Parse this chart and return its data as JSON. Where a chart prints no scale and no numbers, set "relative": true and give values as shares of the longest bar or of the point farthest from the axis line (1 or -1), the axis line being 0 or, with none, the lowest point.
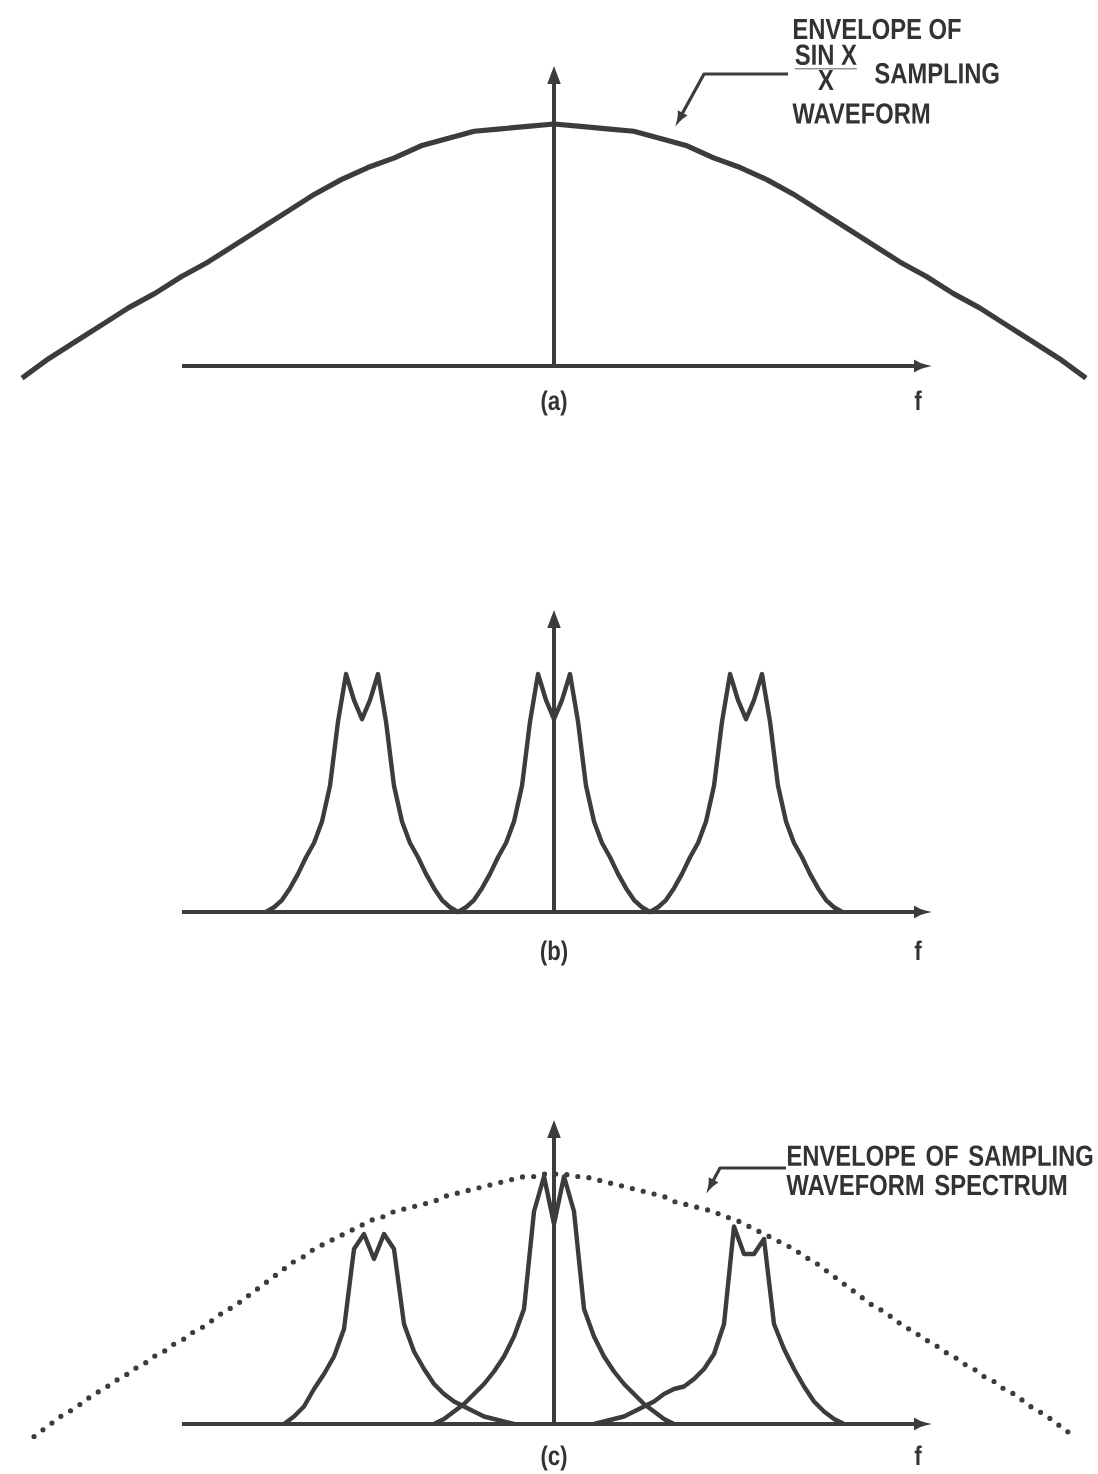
{
  "chart_data": [
    {
      "type": "line",
      "title": "(a)",
      "xlabel": "f",
      "relative": true,
      "categories": [
        null,
        null,
        null,
        null,
        null,
        null,
        null,
        null,
        null,
        null,
        null,
        null,
        null,
        null,
        null,
        null,
        null,
        null,
        null,
        null,
        null,
        null,
        null,
        null,
        null,
        null,
        null,
        null,
        null,
        null,
        null,
        null,
        null,
        null,
        null,
        null,
        null,
        null,
        null,
        null,
        null
      ],
      "series": [
        {
          "color": "#3c3c3c",
          "values": [
            -0.05,
            0.03,
            0.1,
            0.17,
            0.24,
            0.3,
            0.37,
            0.43,
            0.5,
            0.57,
            0.64,
            0.71,
            0.77,
            0.82,
            0.86,
            0.91,
            0.94,
            0.97,
            0.98,
            0.99,
            1,
            0.99,
            0.98,
            0.97,
            0.94,
            0.91,
            0.86,
            0.82,
            0.77,
            0.71,
            0.64,
            0.57,
            0.5,
            0.43,
            0.37,
            0.3,
            0.24,
            0.17,
            0.1,
            0.03,
            -0.05
          ]
        }
      ],
      "annotations": [
        "ENVELOPE OF",
        "\\frac{\\mbox{SIN X}}{\\mbox{X}}",
        "SAMPLING",
        "WAVEFORM"
      ]
    },
    {
      "type": "line",
      "title": "(b)",
      "xlabel": "f",
      "relative": true,
      "categories": [
        null,
        null,
        null,
        null,
        null,
        null,
        null,
        null,
        null,
        null,
        null,
        null,
        null,
        null,
        null,
        null,
        null,
        null,
        null,
        null,
        null,
        null,
        null,
        null,
        null,
        null,
        null,
        null,
        null,
        null,
        null,
        null,
        null,
        null,
        null,
        null,
        null,
        null,
        null,
        null,
        null,
        null,
        null,
        null,
        null,
        null,
        null,
        null,
        null,
        null,
        null,
        null,
        null,
        null,
        null,
        null,
        null,
        null,
        null,
        null,
        null,
        null,
        null,
        null,
        null,
        null,
        null,
        null,
        null,
        null,
        null,
        null,
        null,
        null,
        null,
        null,
        null,
        null,
        null,
        null,
        null,
        null,
        null,
        null,
        null,
        null,
        null,
        null,
        null,
        null,
        null,
        null,
        null
      ],
      "series": [
        {
          "color": "#3c3c3c",
          "values": [
            null,
            null,
            null,
            null,
            null,
            null,
            null,
            null,
            null,
            null,
            0,
            0.02,
            0.05,
            0.1,
            0.16,
            0.23,
            0.29,
            0.38,
            0.53,
            0.8,
            1,
            0.89,
            0.81,
            0.89,
            1,
            0.8,
            0.53,
            0.38,
            0.29,
            0.23,
            0.16,
            0.1,
            0.05,
            0.02,
            0,
            0.02,
            0.05,
            0.1,
            0.16,
            0.23,
            0.29,
            0.38,
            0.53,
            0.8,
            1,
            0.89,
            0.81,
            0.89,
            1,
            0.8,
            0.53,
            0.38,
            0.29,
            0.23,
            0.16,
            0.1,
            0.05,
            0.02,
            0,
            0.02,
            0.05,
            0.1,
            0.16,
            0.23,
            0.29,
            0.38,
            0.53,
            0.8,
            1,
            0.89,
            0.81,
            0.89,
            1,
            0.8,
            0.53,
            0.38,
            0.29,
            0.23,
            0.16,
            0.1,
            0.05,
            0.02,
            0,
            null,
            null,
            null,
            null,
            null,
            null,
            null,
            null,
            null,
            null
          ]
        }
      ]
    },
    {
      "type": "line",
      "title": "(c)",
      "xlabel": "f",
      "relative": true,
      "categories": [
        null,
        null,
        null,
        null,
        null,
        null,
        null,
        null,
        null,
        null,
        null,
        null,
        null,
        null,
        null,
        null,
        null,
        null,
        null,
        null,
        null,
        null,
        null,
        null,
        null,
        null,
        null,
        null,
        null,
        null,
        null,
        null,
        null,
        null,
        null,
        null,
        null,
        null,
        null,
        null,
        null,
        null,
        null,
        null,
        null,
        null,
        null,
        null,
        null,
        null,
        null,
        null,
        null,
        null,
        null,
        null,
        null,
        null,
        null,
        null,
        null,
        null,
        null,
        null,
        null,
        null,
        null,
        null,
        null,
        null,
        null,
        null,
        null,
        null,
        null,
        null,
        null,
        null,
        null,
        null,
        null,
        null,
        null,
        null,
        null,
        null,
        null,
        null,
        null,
        null,
        null,
        null,
        null,
        null,
        null,
        null,
        null,
        null,
        null,
        null,
        null,
        null,
        null,
        null,
        null
      ],
      "series": [
        {
          "color": "#3c3c3c",
          "line_style": "dotted",
          "values": [
            -0.05,
            -0.02,
            0.01,
            0.04,
            0.06,
            0.09,
            0.12,
            0.14,
            0.17,
            0.19,
            0.22,
            0.24,
            0.27,
            0.29,
            0.32,
            0.34,
            0.37,
            0.39,
            0.42,
            0.45,
            0.47,
            0.5,
            0.53,
            0.56,
            0.59,
            0.62,
            0.65,
            0.67,
            0.7,
            0.72,
            0.74,
            0.76,
            0.78,
            0.8,
            0.82,
            0.83,
            0.85,
            0.86,
            0.87,
            0.88,
            0.89,
            0.91,
            0.92,
            0.93,
            0.94,
            0.95,
            0.96,
            0.97,
            0.98,
            0.99,
            0.99,
            1,
            1,
            1,
            0.99,
            0.99,
            0.98,
            0.97,
            0.96,
            0.95,
            0.94,
            0.93,
            0.92,
            0.91,
            0.89,
            0.88,
            0.87,
            0.86,
            0.85,
            0.83,
            0.82,
            0.8,
            0.78,
            0.76,
            0.74,
            0.72,
            0.7,
            0.67,
            0.65,
            0.62,
            0.59,
            0.56,
            0.53,
            0.5,
            0.47,
            0.45,
            0.42,
            0.39,
            0.37,
            0.34,
            0.32,
            0.29,
            0.27,
            0.24,
            0.22,
            0.19,
            0.17,
            0.14,
            0.12,
            0.09,
            0.06,
            0.04,
            0.01,
            -0.02,
            -0.05
          ]
        },
        {
          "color": "#3c3c3c",
          "values": [
            null,
            null,
            null,
            null,
            null,
            null,
            null,
            null,
            null,
            null,
            null,
            null,
            null,
            null,
            null,
            null,
            null,
            null,
            null,
            null,
            null,
            null,
            null,
            null,
            null,
            null,
            null,
            null,
            null,
            null,
            null,
            null,
            null,
            null,
            null,
            null,
            null,
            null,
            null,
            null,
            0,
            0.02,
            0.05,
            0.08,
            0.12,
            0.16,
            0.21,
            0.27,
            0.35,
            0.46,
            0.85,
            0.99,
            0.8,
            0.99,
            0.85,
            0.46,
            0.35,
            0.27,
            0.21,
            0.16,
            0.12,
            0.08,
            0.05,
            0.02,
            0,
            null,
            null,
            null,
            null,
            null,
            null,
            null,
            null,
            null,
            null,
            null,
            null,
            null,
            null,
            null,
            null,
            null,
            null,
            null,
            null,
            null,
            null,
            null,
            null,
            null,
            null,
            null,
            null,
            null,
            null,
            null,
            null,
            null,
            null,
            null,
            null,
            null,
            null,
            null,
            null
          ]
        },
        {
          "color": "#3c3c3c",
          "values": [
            null,
            null,
            null,
            null,
            null,
            null,
            null,
            null,
            null,
            null,
            null,
            null,
            null,
            null,
            null,
            null,
            null,
            null,
            null,
            null,
            null,
            null,
            null,
            null,
            null,
            0,
            0.03,
            0.07,
            0.14,
            0.2,
            0.27,
            0.38,
            0.7,
            0.76,
            0.66,
            0.76,
            0.7,
            0.4,
            0.29,
            0.22,
            0.16,
            0.12,
            0.09,
            0.07,
            0.05,
            0.03,
            0.02,
            0.01,
            0,
            null,
            null,
            null,
            null,
            null,
            null,
            null,
            null,
            null,
            null,
            null,
            null,
            null,
            null,
            null,
            null,
            null,
            null,
            null,
            null,
            null,
            null,
            null,
            null,
            null,
            null,
            null,
            null,
            null,
            null,
            null,
            null,
            null,
            null,
            null,
            null,
            null,
            null,
            null,
            null,
            null,
            null,
            null,
            null,
            null,
            null,
            null,
            null,
            null,
            null,
            null,
            null,
            null,
            null,
            null,
            null
          ]
        },
        {
          "color": "#3c3c3c",
          "values": [
            null,
            null,
            null,
            null,
            null,
            null,
            null,
            null,
            null,
            null,
            null,
            null,
            null,
            null,
            null,
            null,
            null,
            null,
            null,
            null,
            null,
            null,
            null,
            null,
            null,
            null,
            null,
            null,
            null,
            null,
            null,
            null,
            null,
            null,
            null,
            null,
            null,
            null,
            null,
            null,
            null,
            null,
            null,
            null,
            null,
            null,
            null,
            null,
            null,
            null,
            null,
            null,
            null,
            null,
            null,
            null,
            0,
            0.01,
            0.02,
            0.03,
            0.05,
            0.07,
            0.09,
            0.12,
            0.14,
            0.15,
            0.18,
            0.22,
            0.28,
            0.4,
            0.79,
            0.68,
            0.68,
            0.74,
            0.4,
            0.3,
            0.22,
            0.15,
            0.09,
            0.05,
            0.02,
            0,
            null,
            null,
            null,
            null,
            null,
            null,
            null,
            null,
            null,
            null,
            null,
            null,
            null,
            null,
            null,
            null,
            null,
            null,
            null,
            null,
            null,
            null,
            null
          ]
        }
      ],
      "annotations": [
        "ENVELOPE OF SAMPLING WAVEFORM SPECTRUM"
      ]
    }
  ]
}
